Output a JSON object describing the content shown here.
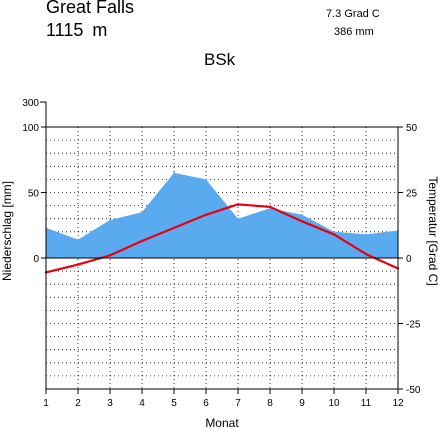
{
  "header": {
    "station": "Great Falls",
    "elevation": "1115  m",
    "climate_class": "BSk",
    "mean_temperature": "7.3 Grad C",
    "annual_precipitation": "386 mm"
  },
  "colors": {
    "precip_fill": "#5aaaf0",
    "temperature_line": "#e8000f",
    "grid": "#000000"
  },
  "chart_data": {
    "type": "area",
    "xlabel": "Monat",
    "ylabel_left": "Niederschlag [mm]",
    "ylabel_right": "Temperatur [Grad C]",
    "x": [
      1,
      2,
      3,
      4,
      5,
      6,
      7,
      8,
      9,
      10,
      11,
      12
    ],
    "x_tick_labels": [
      "1",
      "2",
      "3",
      "4",
      "5",
      "6",
      "7",
      "8",
      "9",
      "10",
      "11",
      "12"
    ],
    "precip_ticks": [
      "300",
      "100",
      "50",
      "0"
    ],
    "temp_ticks": [
      "50",
      "25",
      "0",
      "-25",
      "-50"
    ],
    "ylim_temperature": [
      -50,
      50
    ],
    "grid": true,
    "series": [
      {
        "kind": "precipitation",
        "unit": "mm",
        "values": [
          23,
          14,
          29,
          35,
          65,
          60,
          30,
          38,
          33,
          20,
          18,
          21
        ]
      },
      {
        "kind": "temperature",
        "unit": "Grad C",
        "values": [
          -5.5,
          -2.5,
          1,
          6.5,
          11.5,
          16.5,
          20.5,
          19.5,
          14,
          9,
          1.5,
          -4
        ]
      }
    ]
  }
}
